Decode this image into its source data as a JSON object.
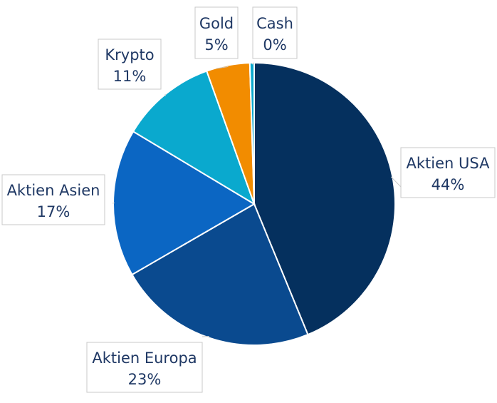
{
  "chart_data": {
    "type": "pie",
    "slices": [
      {
        "label": "Aktien USA",
        "value": 44,
        "display": "44%",
        "color": "#05305e"
      },
      {
        "label": "Aktien Europa",
        "value": 23,
        "display": "23%",
        "color": "#0a4a8f"
      },
      {
        "label": "Aktien Asien",
        "value": 17,
        "display": "17%",
        "color": "#0b66c3"
      },
      {
        "label": "Krypto",
        "value": 11,
        "display": "11%",
        "color": "#0aa9ce"
      },
      {
        "label": "Gold",
        "value": 5,
        "display": "5%",
        "color": "#f28c00"
      },
      {
        "label": "Cash",
        "value": 0.5,
        "display": "0%",
        "color": "#0aa9ce"
      }
    ],
    "start_angle": "12 o'clock",
    "direction": "clockwise",
    "title": "",
    "legend": "none"
  }
}
